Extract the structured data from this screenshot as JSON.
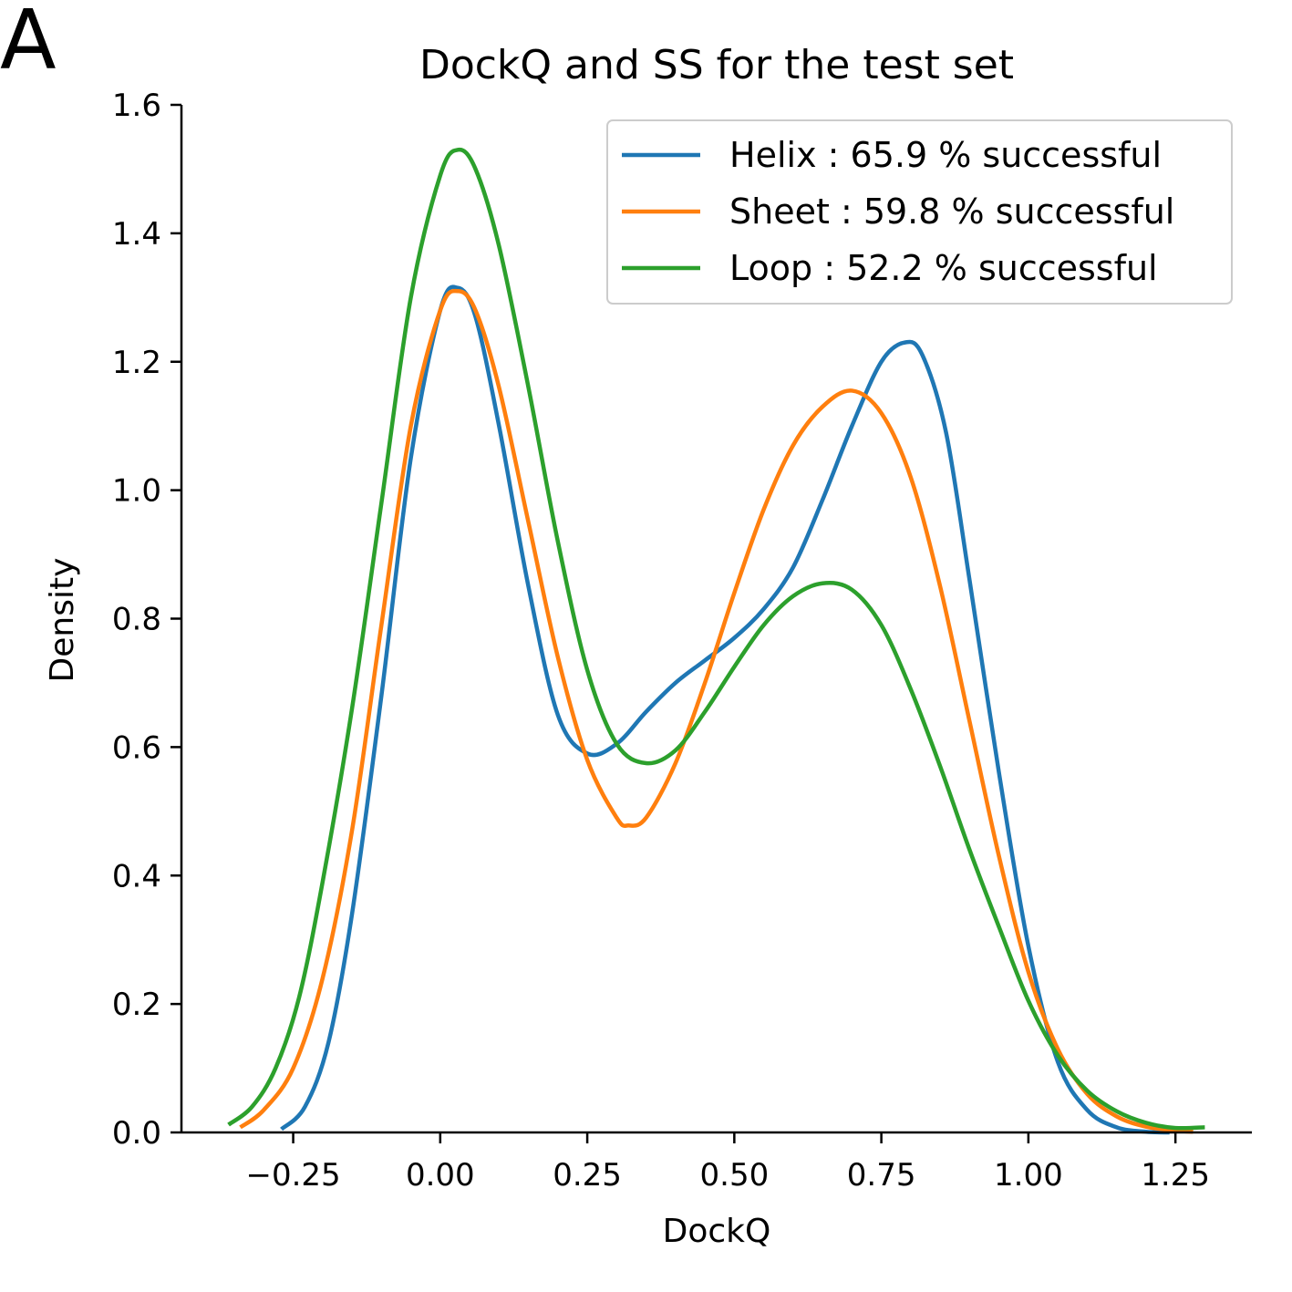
{
  "panel_label": "A",
  "chart_data": {
    "type": "line",
    "title": "DockQ and SS for the test set",
    "xlabel": "DockQ",
    "ylabel": "Density",
    "xlim": [
      -0.44,
      1.38
    ],
    "ylim": [
      0.0,
      1.6
    ],
    "x_ticks": [
      -0.25,
      0.0,
      0.25,
      0.5,
      0.75,
      1.0,
      1.25
    ],
    "x_tick_labels": [
      "−0.25",
      "0.00",
      "0.25",
      "0.50",
      "0.75",
      "1.00",
      "1.25"
    ],
    "y_ticks": [
      0.0,
      0.2,
      0.4,
      0.6,
      0.8,
      1.0,
      1.2,
      1.4,
      1.6
    ],
    "y_tick_labels": [
      "0.0",
      "0.2",
      "0.4",
      "0.6",
      "0.8",
      "1.0",
      "1.2",
      "1.4",
      "1.6"
    ],
    "grid": false,
    "legend_position": "top-right",
    "series": [
      {
        "name": "Helix : 65.9 % successful",
        "color": "#1f77b4",
        "points": [
          [
            -0.27,
            0.005
          ],
          [
            -0.23,
            0.04
          ],
          [
            -0.19,
            0.14
          ],
          [
            -0.15,
            0.34
          ],
          [
            -0.1,
            0.68
          ],
          [
            -0.05,
            1.05
          ],
          [
            0.0,
            1.28
          ],
          [
            0.03,
            1.315
          ],
          [
            0.06,
            1.27
          ],
          [
            0.1,
            1.1
          ],
          [
            0.15,
            0.85
          ],
          [
            0.2,
            0.65
          ],
          [
            0.25,
            0.59
          ],
          [
            0.3,
            0.605
          ],
          [
            0.35,
            0.655
          ],
          [
            0.4,
            0.7
          ],
          [
            0.45,
            0.735
          ],
          [
            0.5,
            0.77
          ],
          [
            0.55,
            0.815
          ],
          [
            0.6,
            0.88
          ],
          [
            0.65,
            0.985
          ],
          [
            0.7,
            1.1
          ],
          [
            0.75,
            1.2
          ],
          [
            0.79,
            1.23
          ],
          [
            0.82,
            1.21
          ],
          [
            0.86,
            1.09
          ],
          [
            0.9,
            0.86
          ],
          [
            0.95,
            0.56
          ],
          [
            1.0,
            0.29
          ],
          [
            1.05,
            0.11
          ],
          [
            1.1,
            0.035
          ],
          [
            1.15,
            0.008
          ],
          [
            1.2,
            0.001
          ],
          [
            1.24,
            0.0
          ]
        ]
      },
      {
        "name": "Sheet : 59.8 % successful",
        "color": "#ff7f0e",
        "points": [
          [
            -0.34,
            0.008
          ],
          [
            -0.3,
            0.035
          ],
          [
            -0.25,
            0.1
          ],
          [
            -0.2,
            0.24
          ],
          [
            -0.15,
            0.47
          ],
          [
            -0.1,
            0.79
          ],
          [
            -0.05,
            1.1
          ],
          [
            0.0,
            1.28
          ],
          [
            0.03,
            1.31
          ],
          [
            0.06,
            1.28
          ],
          [
            0.1,
            1.16
          ],
          [
            0.15,
            0.95
          ],
          [
            0.2,
            0.74
          ],
          [
            0.25,
            0.58
          ],
          [
            0.3,
            0.49
          ],
          [
            0.32,
            0.478
          ],
          [
            0.35,
            0.49
          ],
          [
            0.4,
            0.575
          ],
          [
            0.45,
            0.7
          ],
          [
            0.5,
            0.84
          ],
          [
            0.55,
            0.97
          ],
          [
            0.6,
            1.07
          ],
          [
            0.65,
            1.13
          ],
          [
            0.7,
            1.155
          ],
          [
            0.75,
            1.12
          ],
          [
            0.8,
            1.02
          ],
          [
            0.85,
            0.85
          ],
          [
            0.9,
            0.64
          ],
          [
            0.95,
            0.43
          ],
          [
            1.0,
            0.25
          ],
          [
            1.05,
            0.13
          ],
          [
            1.1,
            0.06
          ],
          [
            1.15,
            0.025
          ],
          [
            1.2,
            0.009
          ],
          [
            1.25,
            0.003
          ],
          [
            1.28,
            0.001
          ]
        ]
      },
      {
        "name": "Loop : 52.2 % successful",
        "color": "#2ca02c",
        "points": [
          [
            -0.36,
            0.012
          ],
          [
            -0.32,
            0.04
          ],
          [
            -0.28,
            0.1
          ],
          [
            -0.24,
            0.21
          ],
          [
            -0.2,
            0.39
          ],
          [
            -0.15,
            0.66
          ],
          [
            -0.1,
            0.98
          ],
          [
            -0.05,
            1.3
          ],
          [
            0.0,
            1.49
          ],
          [
            0.03,
            1.53
          ],
          [
            0.06,
            1.5
          ],
          [
            0.1,
            1.38
          ],
          [
            0.15,
            1.16
          ],
          [
            0.2,
            0.92
          ],
          [
            0.25,
            0.72
          ],
          [
            0.3,
            0.605
          ],
          [
            0.35,
            0.575
          ],
          [
            0.4,
            0.595
          ],
          [
            0.45,
            0.655
          ],
          [
            0.5,
            0.725
          ],
          [
            0.55,
            0.79
          ],
          [
            0.6,
            0.835
          ],
          [
            0.65,
            0.855
          ],
          [
            0.7,
            0.845
          ],
          [
            0.75,
            0.79
          ],
          [
            0.8,
            0.69
          ],
          [
            0.85,
            0.57
          ],
          [
            0.9,
            0.44
          ],
          [
            0.95,
            0.32
          ],
          [
            1.0,
            0.205
          ],
          [
            1.05,
            0.12
          ],
          [
            1.1,
            0.065
          ],
          [
            1.15,
            0.033
          ],
          [
            1.2,
            0.015
          ],
          [
            1.25,
            0.007
          ],
          [
            1.3,
            0.008
          ]
        ]
      }
    ]
  }
}
